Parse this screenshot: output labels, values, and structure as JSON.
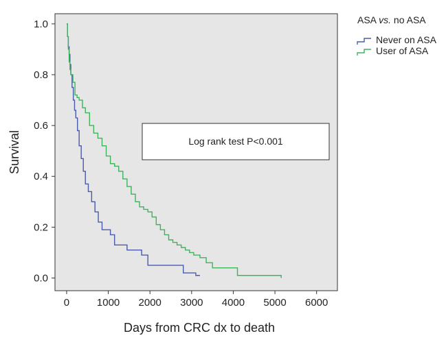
{
  "chart_data": {
    "type": "line",
    "step": true,
    "xlabel": "Days from CRC dx to death",
    "ylabel": "Survival",
    "xlim": [
      -280,
      6500
    ],
    "ylim": [
      -0.05,
      1.04
    ],
    "xticks": [
      0,
      1000,
      2000,
      3000,
      4000,
      5000,
      6000
    ],
    "xtick_labels": [
      "0",
      "1000",
      "2000",
      "3000",
      "4000",
      "5000",
      "6000"
    ],
    "yticks": [
      0.0,
      0.2,
      0.4,
      0.6,
      0.8,
      1.0
    ],
    "ytick_labels": [
      "0.0",
      "0.2",
      "0.4",
      "0.6",
      "0.8",
      "1.0"
    ],
    "grid": false,
    "background": "#e6e6e6",
    "legend": {
      "title_prefix": "ASA ",
      "title_italic": "vs.",
      "title_suffix": " no ASA",
      "position": "top-right-outside"
    },
    "annotation": "Log rank test P<0.001",
    "series": [
      {
        "name": "Never on ASA",
        "color": "#4a5aa8",
        "x": [
          0,
          20,
          40,
          60,
          80,
          100,
          130,
          160,
          190,
          220,
          260,
          300,
          350,
          400,
          450,
          520,
          600,
          680,
          760,
          850,
          950,
          1050,
          1150,
          1300,
          1450,
          1600,
          1800,
          1950,
          2050,
          2400,
          2800,
          3100,
          3200
        ],
        "y": [
          1.0,
          0.95,
          0.91,
          0.88,
          0.84,
          0.8,
          0.75,
          0.7,
          0.66,
          0.63,
          0.58,
          0.52,
          0.47,
          0.42,
          0.37,
          0.34,
          0.3,
          0.26,
          0.22,
          0.19,
          0.19,
          0.17,
          0.13,
          0.13,
          0.11,
          0.11,
          0.09,
          0.05,
          0.05,
          0.05,
          0.02,
          0.01,
          0.01
        ]
      },
      {
        "name": "User of ASA",
        "color": "#3db35a",
        "x": [
          0,
          20,
          40,
          60,
          80,
          100,
          150,
          200,
          250,
          300,
          380,
          450,
          550,
          650,
          750,
          850,
          950,
          1050,
          1150,
          1250,
          1350,
          1450,
          1550,
          1650,
          1750,
          1850,
          1950,
          2050,
          2150,
          2250,
          2350,
          2450,
          2550,
          2650,
          2750,
          2850,
          2950,
          3050,
          3200,
          3350,
          3500,
          3800,
          4100,
          4500,
          5150
        ],
        "y": [
          1.0,
          0.95,
          0.9,
          0.85,
          0.82,
          0.8,
          0.77,
          0.72,
          0.71,
          0.7,
          0.67,
          0.65,
          0.6,
          0.57,
          0.55,
          0.52,
          0.48,
          0.45,
          0.44,
          0.42,
          0.39,
          0.36,
          0.33,
          0.3,
          0.28,
          0.27,
          0.26,
          0.24,
          0.21,
          0.19,
          0.17,
          0.15,
          0.14,
          0.13,
          0.12,
          0.11,
          0.1,
          0.09,
          0.08,
          0.06,
          0.04,
          0.04,
          0.01,
          0.01,
          0.0
        ]
      }
    ]
  }
}
